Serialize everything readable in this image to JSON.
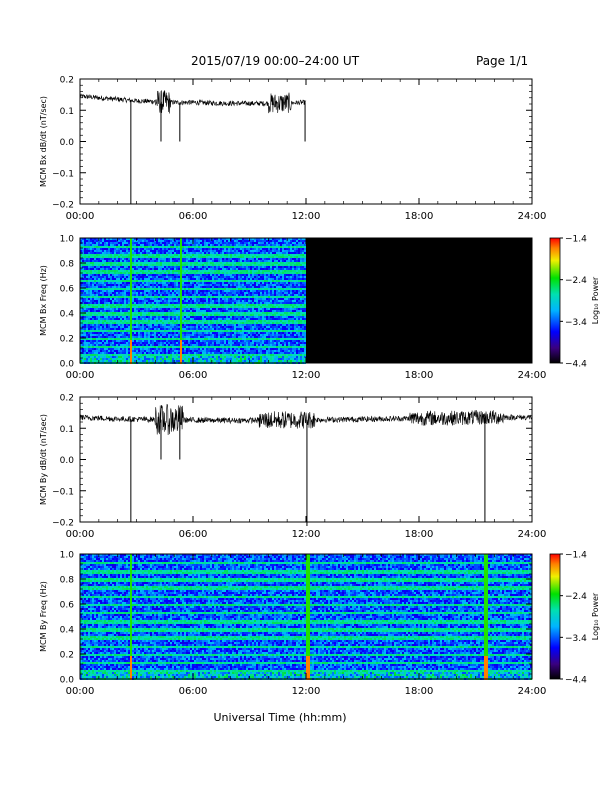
{
  "header": {
    "title": "2015/07/19  00:00–24:00 UT",
    "page": "Page 1/1"
  },
  "colors": {
    "trace": "#000000",
    "frame": "#000000",
    "nodata": "#000000"
  },
  "chart_data": [
    {
      "id": "bx-dbdt",
      "type": "line",
      "ylabel": "MCM Bx dB/dt (nT/sec)",
      "ylim": [
        -0.2,
        0.2
      ],
      "yticks": [
        "0.2",
        "0.1",
        "0.0",
        "−0.1",
        "−0.2"
      ],
      "xlim": [
        0,
        24
      ],
      "xticks": [
        "00:00",
        "06:00",
        "12:00",
        "18:00",
        "24:00"
      ],
      "data_end_hour": 12.0,
      "baseline": [
        [
          0,
          0.145
        ],
        [
          1,
          0.14
        ],
        [
          2,
          0.135
        ],
        [
          3,
          0.13
        ],
        [
          4,
          0.128
        ],
        [
          5,
          0.125
        ],
        [
          6,
          0.125
        ],
        [
          7,
          0.123
        ],
        [
          8,
          0.122
        ],
        [
          9,
          0.122
        ],
        [
          10,
          0.122
        ],
        [
          11,
          0.123
        ],
        [
          12,
          0.125
        ]
      ],
      "noise": 0.008,
      "spikes": [
        {
          "x": 2.7,
          "y": -0.2
        },
        {
          "x": 4.3,
          "y": 0.0
        },
        {
          "x": 5.3,
          "y": 0.0
        },
        {
          "x": 11.95,
          "y": 0.0
        }
      ],
      "bursts": [
        {
          "x0": 4.0,
          "x1": 4.8,
          "amp": 0.03
        },
        {
          "x0": 10.0,
          "x1": 11.2,
          "amp": 0.025
        }
      ]
    },
    {
      "id": "bx-spec",
      "type": "heatmap",
      "ylabel": "MCM Bx Freq (Hz)",
      "ylim": [
        0,
        1.0
      ],
      "yticks": [
        "1.0",
        "0.8",
        "0.6",
        "0.4",
        "0.2",
        "0.0"
      ],
      "xlim": [
        0,
        24
      ],
      "xticks": [
        "00:00",
        "06:00",
        "12:00",
        "18:00",
        "24:00"
      ],
      "data_end_hour": 12.0,
      "lines_hz": [
        0.067,
        0.133,
        0.2,
        0.267,
        0.333,
        0.4,
        0.467,
        0.533,
        0.6,
        0.667,
        0.733,
        0.8,
        0.867,
        0.933
      ],
      "spike_hours": [
        2.7,
        5.3
      ]
    },
    {
      "id": "by-dbdt",
      "type": "line",
      "ylabel": "MCM By dB/dt (nT/sec)",
      "ylim": [
        -0.2,
        0.2
      ],
      "yticks": [
        "0.2",
        "0.1",
        "0.0",
        "−0.1",
        "−0.2"
      ],
      "xlim": [
        0,
        24
      ],
      "xticks": [
        "00:00",
        "06:00",
        "12:00",
        "18:00",
        "24:00"
      ],
      "data_end_hour": 24.0,
      "baseline": [
        [
          0,
          0.135
        ],
        [
          2,
          0.13
        ],
        [
          4,
          0.128
        ],
        [
          6,
          0.126
        ],
        [
          8,
          0.125
        ],
        [
          10,
          0.126
        ],
        [
          12,
          0.127
        ],
        [
          14,
          0.128
        ],
        [
          16,
          0.13
        ],
        [
          18,
          0.132
        ],
        [
          20,
          0.133
        ],
        [
          22,
          0.135
        ],
        [
          24,
          0.135
        ]
      ],
      "noise": 0.009,
      "spikes": [
        {
          "x": 2.7,
          "y": -0.2
        },
        {
          "x": 4.3,
          "y": 0.0
        },
        {
          "x": 5.3,
          "y": 0.0
        },
        {
          "x": 12.05,
          "y": -0.22
        },
        {
          "x": 21.5,
          "y": -0.2
        }
      ],
      "bursts": [
        {
          "x0": 4.0,
          "x1": 5.5,
          "amp": 0.04
        },
        {
          "x0": 9.5,
          "x1": 12.5,
          "amp": 0.02
        },
        {
          "x0": 17.5,
          "x1": 22.5,
          "amp": 0.015
        }
      ]
    },
    {
      "id": "by-spec",
      "type": "heatmap",
      "ylabel": "MCM By Freq (Hz)",
      "ylim": [
        0,
        1.0
      ],
      "yticks": [
        "1.0",
        "0.8",
        "0.6",
        "0.4",
        "0.2",
        "0.0"
      ],
      "xlim": [
        0,
        24
      ],
      "xticks": [
        "00:00",
        "06:00",
        "12:00",
        "18:00",
        "24:00"
      ],
      "data_end_hour": 24.0,
      "lines_hz": [
        0.067,
        0.133,
        0.2,
        0.267,
        0.333,
        0.4,
        0.467,
        0.533,
        0.6,
        0.667,
        0.733,
        0.8,
        0.867,
        0.933
      ],
      "spike_hours": [
        2.7,
        12.05,
        21.5
      ]
    }
  ],
  "colorbar": {
    "label": "Log₁₀ Power",
    "ticks": [
      "−1.4",
      "−2.4",
      "−3.4",
      "−4.4"
    ],
    "range": [
      -4.4,
      -1.4
    ]
  },
  "xlabel": "Universal Time (hh:mm)"
}
